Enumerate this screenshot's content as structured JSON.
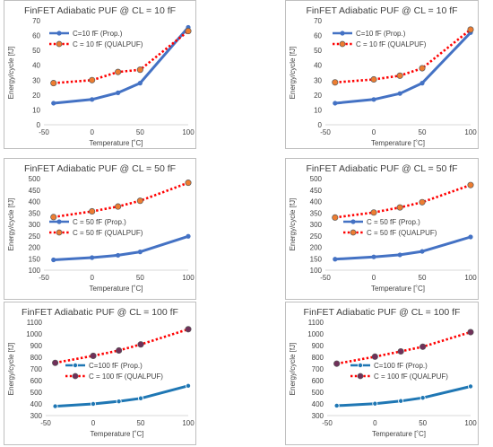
{
  "colors": {
    "prop": "#4472c4",
    "prop_dark": "#1f77b4",
    "qual_line": "#ff0000",
    "qual_marker": "#ed7d31",
    "qual_marker_dark": "#70305a",
    "axis": "#d9d9d9",
    "grid": "#d9d9d9"
  },
  "chart_data": [
    {
      "type": "line",
      "title": "FinFET Adiabatic PUF @ CL = 10 fF",
      "xlabel": "Temperature [˚C]",
      "ylabel": "Energy/cycle [fJ]",
      "xlim": [
        -50,
        100
      ],
      "xticks": [
        "-50",
        "0",
        "50",
        "100"
      ],
      "ylim": [
        0,
        70
      ],
      "yticks": [
        "0",
        "10",
        "20",
        "30",
        "40",
        "50",
        "60",
        "70"
      ],
      "legend": "top-left",
      "series": [
        {
          "name": "C=10 fF (Prop.)",
          "x": [
            -40,
            0,
            27,
            50,
            100
          ],
          "values": [
            14.5,
            17,
            21.5,
            28,
            65.5
          ]
        },
        {
          "name": "C = 10 fF (QUALPUF)",
          "x": [
            -40,
            0,
            27,
            50,
            100
          ],
          "values": [
            28,
            30,
            35.5,
            37,
            63
          ]
        }
      ]
    },
    {
      "type": "line",
      "title": "FinFET Adiabatic PUF @ CL = 10 fF",
      "xlabel": "Temperature [˚C]",
      "ylabel": "Energy/cycle [fJ]",
      "xlim": [
        -50,
        100
      ],
      "xticks": [
        "-50",
        "0",
        "50",
        "100"
      ],
      "ylim": [
        0,
        70
      ],
      "yticks": [
        "0",
        "10",
        "20",
        "30",
        "40",
        "50",
        "60",
        "70"
      ],
      "legend": "top-left",
      "series": [
        {
          "name": "C=10 fF (Prop.)",
          "x": [
            -40,
            0,
            27,
            50,
            100
          ],
          "values": [
            14.5,
            17,
            21,
            28,
            62
          ]
        },
        {
          "name": "C = 10 fF (QUALPUF)",
          "x": [
            -40,
            0,
            27,
            50,
            100
          ],
          "values": [
            28.5,
            30.5,
            33,
            38,
            64
          ]
        }
      ]
    },
    {
      "type": "line",
      "title": "FinFET Adiabatic PUF @ CL = 50 fF",
      "xlabel": "Temperature [˚C]",
      "ylabel": "Energy/cycle [fJ]",
      "xlim": [
        -50,
        100
      ],
      "xticks": [
        "-50",
        "0",
        "50",
        "100"
      ],
      "ylim": [
        100,
        500
      ],
      "yticks": [
        "100",
        "150",
        "200",
        "250",
        "300",
        "350",
        "400",
        "450",
        "500"
      ],
      "legend": "middle",
      "series": [
        {
          "name": "C = 50 fF (Prop.)",
          "x": [
            -40,
            0,
            27,
            50,
            100
          ],
          "values": [
            145,
            155,
            165,
            180,
            248
          ]
        },
        {
          "name": "C = 50 fF (QUALPUF)",
          "x": [
            -40,
            0,
            27,
            50,
            100
          ],
          "values": [
            332,
            357,
            378,
            403,
            482
          ]
        }
      ]
    },
    {
      "type": "line",
      "title": "FinFET Adiabatic PUF @ CL = 50 fF",
      "xlabel": "Temperature [˚C]",
      "ylabel": "Energy/cycle [fJ]",
      "xlim": [
        -50,
        100
      ],
      "xticks": [
        "-50",
        "0",
        "50",
        "100"
      ],
      "ylim": [
        100,
        500
      ],
      "yticks": [
        "100",
        "150",
        "200",
        "250",
        "300",
        "350",
        "400",
        "450",
        "500"
      ],
      "legend": "middle",
      "series": [
        {
          "name": "C = 50 fF (Prop.)",
          "x": [
            -40,
            0,
            27,
            50,
            100
          ],
          "values": [
            148,
            158,
            167,
            182,
            245
          ]
        },
        {
          "name": "C = 50 fF (QUALPUF)",
          "x": [
            -40,
            0,
            27,
            50,
            100
          ],
          "values": [
            330,
            352,
            374,
            397,
            472
          ]
        }
      ]
    },
    {
      "type": "line",
      "title": "FinFET Adiabatic PUF @ CL = 100 fF",
      "xlabel": "Temperature [˚C]",
      "ylabel": "Energy/cycle [fJ]",
      "xlim": [
        -50,
        100
      ],
      "xticks": [
        "-50",
        "0",
        "50",
        "100"
      ],
      "ylim": [
        300,
        1100
      ],
      "yticks": [
        "300",
        "400",
        "500",
        "600",
        "700",
        "800",
        "900",
        "1000",
        "1100"
      ],
      "legend": "middle",
      "series": [
        {
          "name": "C=100 fF (Prop.)",
          "x": [
            -40,
            0,
            27,
            50,
            100
          ],
          "values": [
            380,
            400,
            422,
            448,
            555
          ]
        },
        {
          "name": "C = 100 fF (QUALPUF)",
          "x": [
            -40,
            0,
            27,
            50,
            100
          ],
          "values": [
            752,
            812,
            858,
            910,
            1040
          ]
        }
      ]
    },
    {
      "type": "line",
      "title": "FinFET Adiabatic PUF @ CL = 100 fF",
      "xlabel": "Temperature [˚C]",
      "ylabel": "Energy/cycle [fJ]",
      "xlim": [
        -50,
        100
      ],
      "xticks": [
        "-50",
        "0",
        "50",
        "100"
      ],
      "ylim": [
        300,
        1100
      ],
      "yticks": [
        "300",
        "400",
        "500",
        "600",
        "700",
        "800",
        "900",
        "1000",
        "1100"
      ],
      "legend": "middle",
      "series": [
        {
          "name": "C=100 fF (Prop.)",
          "x": [
            -40,
            0,
            27,
            50,
            100
          ],
          "values": [
            385,
            402,
            425,
            452,
            550
          ]
        },
        {
          "name": "C = 100 fF (QUALPUF)",
          "x": [
            -40,
            0,
            27,
            50,
            100
          ],
          "values": [
            745,
            805,
            850,
            890,
            1015
          ]
        }
      ]
    }
  ]
}
